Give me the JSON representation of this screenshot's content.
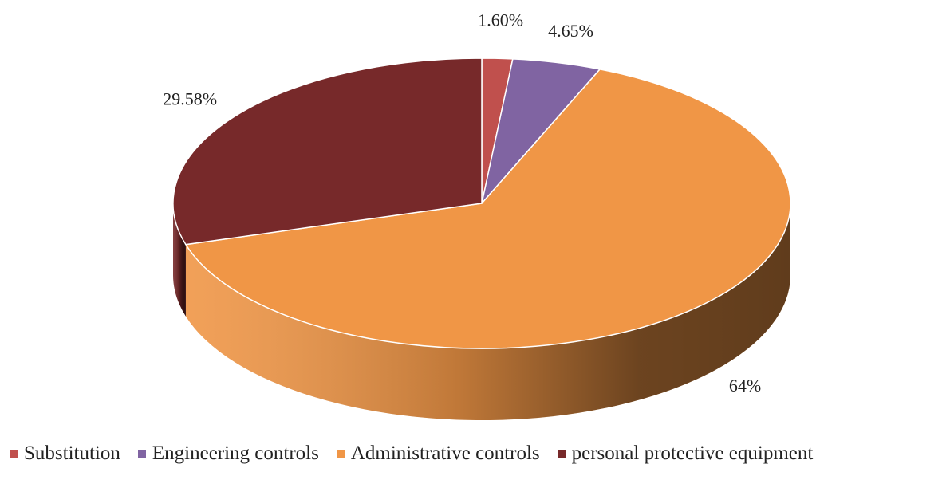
{
  "chart_data": {
    "type": "pie",
    "categories": [
      "Substitution",
      "Engineering controls",
      "Administrative controls",
      "personal protective equipment"
    ],
    "values": [
      1.6,
      4.65,
      64.17,
      29.58
    ],
    "data_labels": [
      "1.60%",
      "4.65%",
      "64%",
      "29.58%"
    ],
    "colors": [
      "#C0504D",
      "#8064A2",
      "#F09646",
      "#77292A"
    ],
    "side_colors": [
      "#8E3B39",
      "#5E4A78",
      "#C27A3A",
      "#4F1B1C"
    ],
    "legend_position": "bottom",
    "style": "3d"
  }
}
